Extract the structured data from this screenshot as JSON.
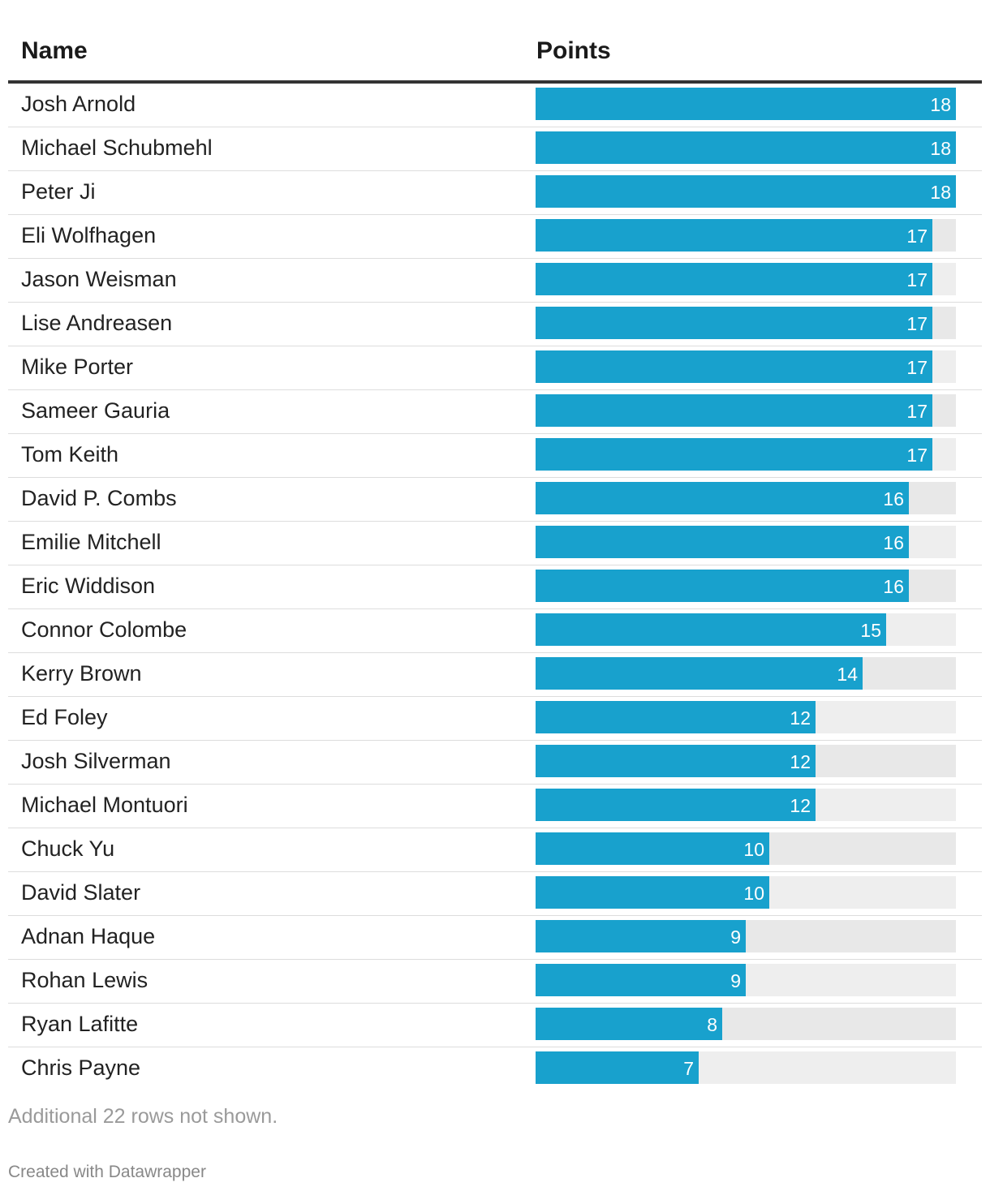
{
  "header": {
    "name": "Name",
    "points": "Points"
  },
  "chart_data": {
    "type": "bar",
    "orientation": "horizontal",
    "columns": [
      "Name",
      "Points"
    ],
    "categories": [
      "Josh Arnold",
      "Michael Schubmehl",
      "Peter Ji",
      "Eli Wolfhagen",
      "Jason Weisman",
      "Lise Andreasen",
      "Mike Porter",
      "Sameer Gauria",
      "Tom Keith",
      "David P. Combs",
      "Emilie Mitchell",
      "Eric Widdison",
      "Connor Colombe",
      "Kerry Brown",
      "Ed Foley",
      "Josh Silverman",
      "Michael Montuori",
      "Chuck Yu",
      "David Slater",
      "Adnan Haque",
      "Rohan Lewis",
      "Ryan Lafitte",
      "Chris Payne"
    ],
    "values": [
      18,
      18,
      18,
      17,
      17,
      17,
      17,
      17,
      17,
      16,
      16,
      16,
      15,
      14,
      12,
      12,
      12,
      10,
      10,
      9,
      9,
      8,
      7
    ],
    "xlim": [
      0,
      18
    ],
    "bar_color": "#18a1cd",
    "track_color": "#eeeeee"
  },
  "footer": {
    "note": "Additional 22 rows not shown.",
    "credit": "Created with Datawrapper"
  }
}
